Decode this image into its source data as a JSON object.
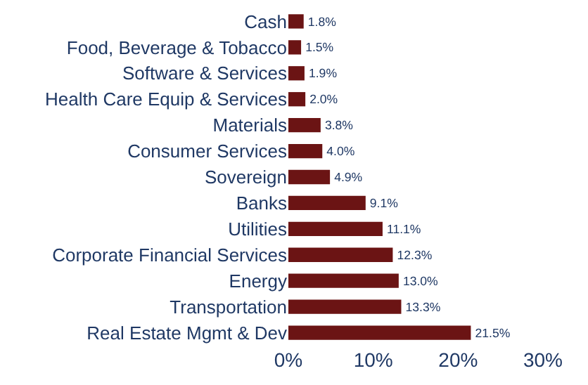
{
  "chart_data": {
    "type": "bar",
    "orientation": "horizontal",
    "categories": [
      "Cash",
      "Food, Beverage & Tobacco",
      "Software & Services",
      "Health Care Equip & Services",
      "Materials",
      "Consumer Services",
      "Sovereign",
      "Banks",
      "Utilities",
      "Corporate Financial Services",
      "Energy",
      "Transportation",
      "Real Estate Mgmt & Dev"
    ],
    "values": [
      1.8,
      1.5,
      1.9,
      2.0,
      3.8,
      4.0,
      4.9,
      9.1,
      11.1,
      12.3,
      13.0,
      13.3,
      21.5
    ],
    "value_labels": [
      "1.8%",
      "1.5%",
      "1.9%",
      "2.0%",
      "3.8%",
      "4.0%",
      "4.9%",
      "9.1%",
      "11.1%",
      "12.3%",
      "13.0%",
      "13.3%",
      "21.5%"
    ],
    "color": "#6b1414",
    "xlim": [
      0,
      30
    ],
    "xticks": [
      {
        "value": 0,
        "label": "0%"
      },
      {
        "value": 10,
        "label": "10%"
      },
      {
        "value": 20,
        "label": "20%"
      },
      {
        "value": 30,
        "label": "30%"
      }
    ],
    "legend": false
  }
}
